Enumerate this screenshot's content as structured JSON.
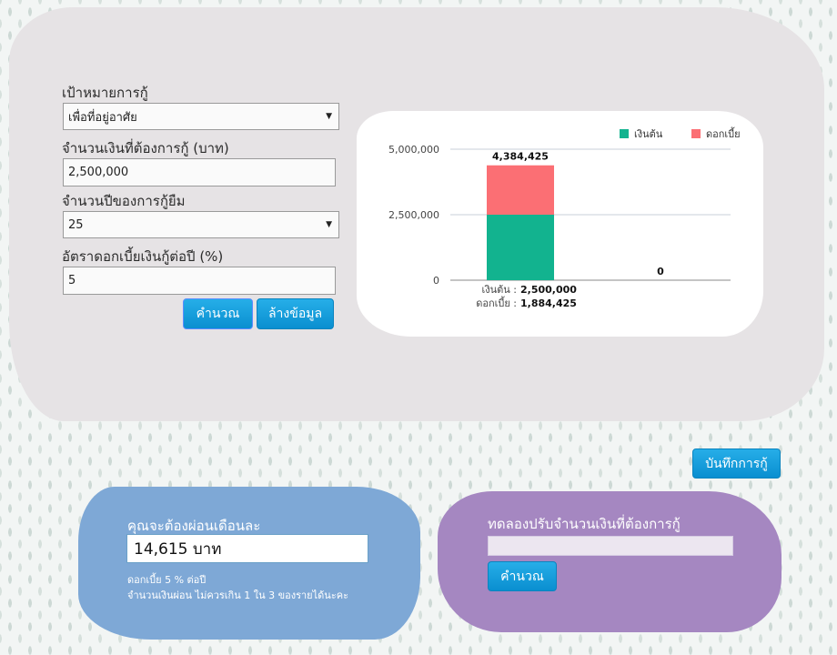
{
  "form": {
    "goal_label": "เป้าหมายการกู้",
    "goal_value": "เพื่อที่อยู่อาศัย",
    "amount_label": "จำนวนเงินที่ต้องการกู้ (บาท)",
    "amount_value": "2,500,000",
    "years_label": "จำนวนปีของการกู้ยืม",
    "years_value": "25",
    "rate_label": "อัตราดอกเบี้ยเงินกู้ต่อปี (%)",
    "rate_value": "5",
    "calculate_label": "คำนวณ",
    "clear_label": "ล้างข้อมูล"
  },
  "chart_data": {
    "type": "bar",
    "stacked": true,
    "categories": [
      "",
      ""
    ],
    "series": [
      {
        "name": "เงินต้น",
        "color": "#12b38f",
        "values": [
          2500000,
          0
        ]
      },
      {
        "name": "ดอกเบี้ย",
        "color": "#fb6f74",
        "values": [
          1884425,
          0
        ]
      }
    ],
    "totals": [
      "4,384,425",
      "0"
    ],
    "yticks": [
      "5,000,000",
      "2,500,000",
      "0"
    ],
    "ylim": [
      0,
      5000000
    ],
    "legend_position": "top-right",
    "grid": true,
    "breakdown": {
      "principal_label": "เงินต้น :",
      "principal_value": "2,500,000",
      "interest_label": "ดอกเบี้ย :",
      "interest_value": "1,884,425"
    }
  },
  "save_button_label": "บันทึกการกู้",
  "monthly": {
    "title": "คุณจะต้องผ่อนเดือนละ",
    "value": "14,615 บาท",
    "note1": "ดอกเบี้ย 5 % ต่อปี",
    "note2": "จำนวนเงินผ่อน ไม่ควรเกิน 1 ใน 3 ของรายได้นะคะ"
  },
  "adjust": {
    "title": "ทดลองปรับจำนวนเงินที่ต้องการกู้",
    "input_value": "",
    "calculate_label": "คำนวณ"
  }
}
